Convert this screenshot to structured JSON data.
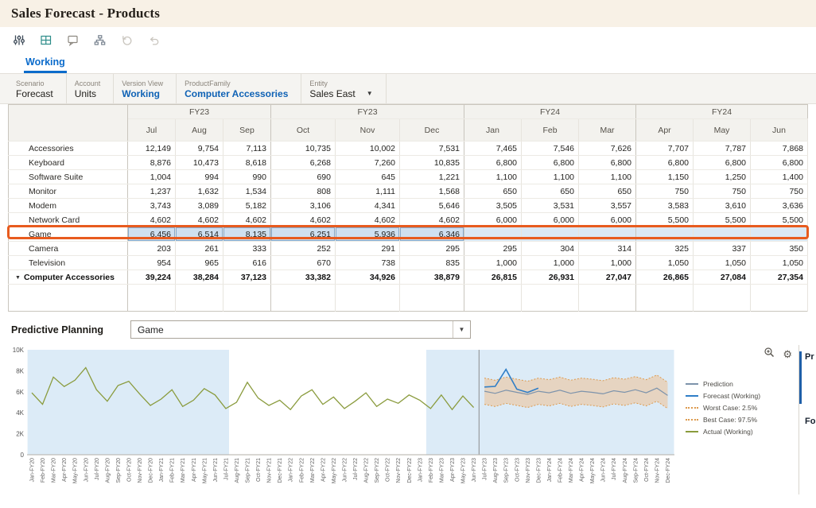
{
  "title": "Sales Forecast - Products",
  "toolbar": {
    "icons": [
      "adjust-icon",
      "grid-icon",
      "comment-icon",
      "hierarchy-icon",
      "history-icon",
      "undo-icon"
    ]
  },
  "tab": {
    "label": "Working"
  },
  "pov": {
    "items": [
      {
        "dimension": "Scenario",
        "member": "Forecast",
        "accent": false,
        "dropdown": false
      },
      {
        "dimension": "Account",
        "member": "Units",
        "accent": false,
        "dropdown": false
      },
      {
        "dimension": "Version View",
        "member": "Working",
        "accent": true,
        "dropdown": false
      },
      {
        "dimension": "ProductFamily",
        "member": "Computer Accessories",
        "accent": true,
        "dropdown": false
      },
      {
        "dimension": "Entity",
        "member": "Sales East",
        "accent": false,
        "dropdown": true
      }
    ]
  },
  "grid": {
    "groups": [
      {
        "label": "FY23",
        "span": 3
      },
      {
        "label": "FY23",
        "span": 3
      },
      {
        "label": "FY24",
        "span": 3
      },
      {
        "label": "FY24",
        "span": 3
      }
    ],
    "months": [
      "Jul",
      "Aug",
      "Sep",
      "Oct",
      "Nov",
      "Dec",
      "Jan",
      "Feb",
      "Mar",
      "Apr",
      "May",
      "Jun"
    ],
    "selected_row": "Game",
    "rows": [
      {
        "name": "Accessories",
        "total": false,
        "values": [
          "12,149",
          "9,754",
          "7,113",
          "10,735",
          "10,002",
          "7,531",
          "7,465",
          "7,546",
          "7,626",
          "7,707",
          "7,787",
          "7,868"
        ]
      },
      {
        "name": "Keyboard",
        "total": false,
        "values": [
          "8,876",
          "10,473",
          "8,618",
          "6,268",
          "7,260",
          "10,835",
          "6,800",
          "6,800",
          "6,800",
          "6,800",
          "6,800",
          "6,800"
        ]
      },
      {
        "name": "Software Suite",
        "total": false,
        "values": [
          "1,004",
          "994",
          "990",
          "690",
          "645",
          "1,221",
          "1,100",
          "1,100",
          "1,100",
          "1,150",
          "1,250",
          "1,400"
        ]
      },
      {
        "name": "Monitor",
        "total": false,
        "values": [
          "1,237",
          "1,632",
          "1,534",
          "808",
          "1,111",
          "1,568",
          "650",
          "650",
          "650",
          "750",
          "750",
          "750"
        ]
      },
      {
        "name": "Modem",
        "total": false,
        "values": [
          "3,743",
          "3,089",
          "5,182",
          "3,106",
          "4,341",
          "5,646",
          "3,505",
          "3,531",
          "3,557",
          "3,583",
          "3,610",
          "3,636"
        ]
      },
      {
        "name": "Network Card",
        "total": false,
        "values": [
          "4,602",
          "4,602",
          "4,602",
          "4,602",
          "4,602",
          "4,602",
          "6,000",
          "6,000",
          "6,000",
          "5,500",
          "5,500",
          "5,500"
        ]
      },
      {
        "name": "Game",
        "total": false,
        "values": [
          "6,456",
          "6,514",
          "8,135",
          "6,251",
          "5,936",
          "6,346",
          "",
          "",
          "",
          "",
          "",
          ""
        ]
      },
      {
        "name": "Camera",
        "total": false,
        "values": [
          "203",
          "261",
          "333",
          "252",
          "291",
          "295",
          "295",
          "304",
          "314",
          "325",
          "337",
          "350"
        ]
      },
      {
        "name": "Television",
        "total": false,
        "values": [
          "954",
          "965",
          "616",
          "670",
          "738",
          "835",
          "1,000",
          "1,000",
          "1,000",
          "1,050",
          "1,050",
          "1,050"
        ]
      },
      {
        "name": "Computer Accessories",
        "total": true,
        "values": [
          "39,224",
          "38,284",
          "37,123",
          "33,382",
          "34,926",
          "38,879",
          "26,815",
          "26,931",
          "27,047",
          "26,865",
          "27,084",
          "27,354"
        ]
      }
    ]
  },
  "predictive": {
    "label": "Predictive Planning",
    "selected": "Game"
  },
  "chart_data": {
    "type": "line",
    "ylim": [
      0,
      10000
    ],
    "yticks": [
      {
        "v": 0,
        "label": "0"
      },
      {
        "v": 2000,
        "label": "2K"
      },
      {
        "v": 4000,
        "label": "4K"
      },
      {
        "v": 6000,
        "label": "6K"
      },
      {
        "v": 8000,
        "label": "8K"
      },
      {
        "v": 10000,
        "label": "10K"
      }
    ],
    "x_labels": [
      "Jan-FY20",
      "Feb-FY20",
      "Mar-FY20",
      "Apr-FY20",
      "May-FY20",
      "Jun-FY20",
      "Jul-FY20",
      "Aug-FY20",
      "Sep-FY20",
      "Oct-FY20",
      "Nov-FY20",
      "Dec-FY20",
      "Jan-FY21",
      "Feb-FY21",
      "Mar-FY21",
      "Apr-FY21",
      "May-FY21",
      "Jun-FY21",
      "Jul-FY21",
      "Aug-FY21",
      "Sep-FY21",
      "Oct-FY21",
      "Nov-FY21",
      "Dec-FY21",
      "Jan-FY22",
      "Feb-FY22",
      "Mar-FY22",
      "Apr-FY22",
      "May-FY22",
      "Jun-FY22",
      "Jul-FY22",
      "Aug-FY22",
      "Sep-FY22",
      "Oct-FY22",
      "Nov-FY22",
      "Dec-FY22",
      "Jan-FY23",
      "Feb-FY23",
      "Mar-FY23",
      "Apr-FY23",
      "May-FY23",
      "Jun-FY23",
      "Jul-FY23",
      "Aug-FY23",
      "Sep-FY23",
      "Oct-FY23",
      "Nov-FY23",
      "Dec-FY23",
      "Jan-FY24",
      "Feb-FY24",
      "Mar-FY24",
      "Apr-FY24",
      "May-FY24",
      "Jun-FY24",
      "Jul-FY24",
      "Aug-FY24",
      "Sep-FY24",
      "Oct-FY24",
      "Nov-FY24",
      "Dec-FY24"
    ],
    "series": [
      {
        "name": "Actual (Working)",
        "color": "#8a9b3d",
        "dash": null,
        "width": 1.3,
        "start": 0,
        "values": [
          5900,
          4800,
          7400,
          6500,
          7100,
          8300,
          6200,
          5100,
          6600,
          7000,
          5800,
          4700,
          5300,
          6200,
          4600,
          5200,
          6300,
          5700,
          4400,
          5000,
          6900,
          5400,
          4700,
          5200,
          4300,
          5600,
          6200,
          4800,
          5500,
          4400,
          5100,
          5900,
          4600,
          5300,
          4900,
          5700,
          5200,
          4400,
          5700,
          4300,
          5600,
          4500
        ]
      },
      {
        "name": "Prediction",
        "color": "#7d93ab",
        "dash": null,
        "width": 1.2,
        "start": 42,
        "values": [
          6050,
          5850,
          6150,
          5950,
          5750,
          6050,
          5900,
          6150,
          5850,
          6050,
          5950,
          5800,
          6100,
          5950,
          6200,
          5900,
          6350,
          5650
        ]
      },
      {
        "name": "Worst Case: 2.5%",
        "color": "#dd9a4e",
        "dash": "2 2",
        "width": 1,
        "start": 42,
        "values": [
          4800,
          4600,
          4900,
          4700,
          4500,
          4800,
          4650,
          4900,
          4600,
          4800,
          4700,
          4550,
          4850,
          4700,
          4950,
          4650,
          5100,
          4400
        ]
      },
      {
        "name": "Best Case: 97.5%",
        "color": "#dd9a4e",
        "dash": "2 2",
        "width": 1,
        "start": 42,
        "values": [
          7300,
          7100,
          7400,
          7200,
          7000,
          7300,
          7150,
          7400,
          7100,
          7300,
          7200,
          7050,
          7350,
          7200,
          7450,
          7150,
          7600,
          6900
        ]
      },
      {
        "name": "Forecast (Working)",
        "color": "#2f7ec7",
        "dash": null,
        "width": 1.6,
        "start": 42,
        "values": [
          6456,
          6514,
          8135,
          6251,
          5936,
          6346
        ]
      }
    ],
    "band": {
      "lower": "Worst Case: 2.5%",
      "upper": "Best Case: 97.5%",
      "fill": "#f2b97e",
      "opacity": 0.45
    },
    "shaded_regions": [
      {
        "from": -0.4,
        "to": 18.3
      },
      {
        "from": 36.6,
        "to": 59.6
      }
    ],
    "region_color": "#dcebf7",
    "separator_at": 41.5
  },
  "chart_legend": [
    {
      "label": "Prediction",
      "color": "#7d93ab",
      "style": "solid"
    },
    {
      "label": "Forecast (Working)",
      "color": "#2f7ec7",
      "style": "solid"
    },
    {
      "label": "Worst Case: 2.5%",
      "color": "#dd9a4e",
      "style": "dotted"
    },
    {
      "label": "Best Case: 97.5%",
      "color": "#dd9a4e",
      "style": "dotted"
    },
    {
      "label": "Actual (Working)",
      "color": "#8a9b3d",
      "style": "solid"
    }
  ],
  "side_panel": {
    "top": "Pr",
    "bottom": "Fo"
  }
}
